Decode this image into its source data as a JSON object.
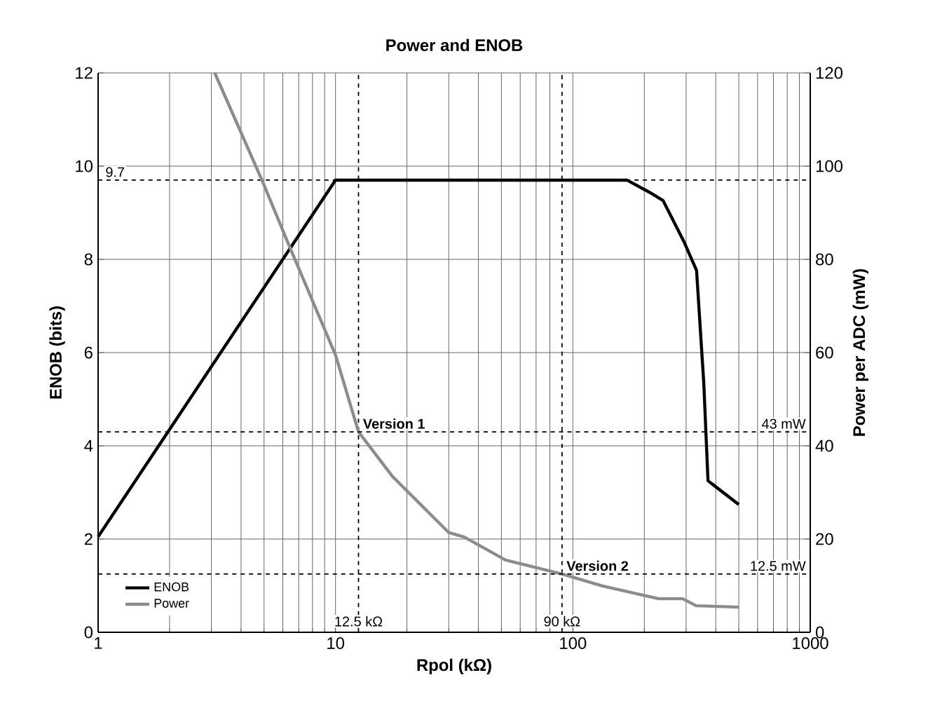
{
  "chart_data": {
    "type": "line",
    "title": "Power and ENOB",
    "xlabel": "Rpol (kΩ)",
    "ylabel": "ENOB (bits)",
    "y2label": "Power per ADC (mW)",
    "log": "x",
    "grid": true,
    "legend": "bottom left",
    "marker": "none",
    "line_style": "solid",
    "xlim": [
      1,
      1000
    ],
    "xticks": [
      1,
      10,
      100,
      1000
    ],
    "ylim": [
      0,
      12
    ],
    "yticks": [
      0,
      2,
      4,
      6,
      8,
      10,
      12
    ],
    "y2lim": [
      0,
      120
    ],
    "y2ticks": [
      0,
      20,
      40,
      60,
      80,
      100,
      120
    ],
    "series": [
      {
        "name": "ENOB",
        "color": "#000000",
        "x": [
          1,
          10,
          169,
          210,
          240,
          295,
          332,
          356,
          371,
          500
        ],
        "values": [
          2.05,
          9.7,
          9.7,
          9.44,
          9.26,
          8.36,
          7.76,
          5.35,
          3.25,
          2.74
        ]
      },
      {
        "name": "Power",
        "color": "#8c8c8c",
        "axis": "y2",
        "x": [
          3.1,
          4.9,
          6.3,
          10,
          12.5,
          17.4,
          30,
          35,
          52,
          90,
          134,
          230,
          290,
          331,
          500
        ],
        "values": [
          120,
          97,
          83.6,
          59.5,
          43,
          33.4,
          21.4,
          20.4,
          15.5,
          12.5,
          9.9,
          7.2,
          7.2,
          5.7,
          5.4
        ]
      }
    ],
    "ref_lines": [
      {
        "axis": "y",
        "value": 9.7,
        "label": "9.7",
        "line_style": "dashed"
      },
      {
        "axis": "y2",
        "value": 43,
        "label": "43 mW",
        "line_style": "dashed"
      },
      {
        "axis": "y2",
        "value": 12.5,
        "label": "12.5 mW",
        "line_style": "dashed"
      },
      {
        "axis": "x",
        "value": 12.5,
        "label": "12.5 kΩ",
        "line_style": "dashed"
      },
      {
        "axis": "x",
        "value": 90,
        "label": "90 kΩ",
        "line_style": "dashed"
      }
    ],
    "annotations": [
      {
        "text": "Version 1",
        "x": 12.5,
        "y": 4.3
      },
      {
        "text": "Version 2",
        "x": 90,
        "y": 1.25
      }
    ]
  }
}
